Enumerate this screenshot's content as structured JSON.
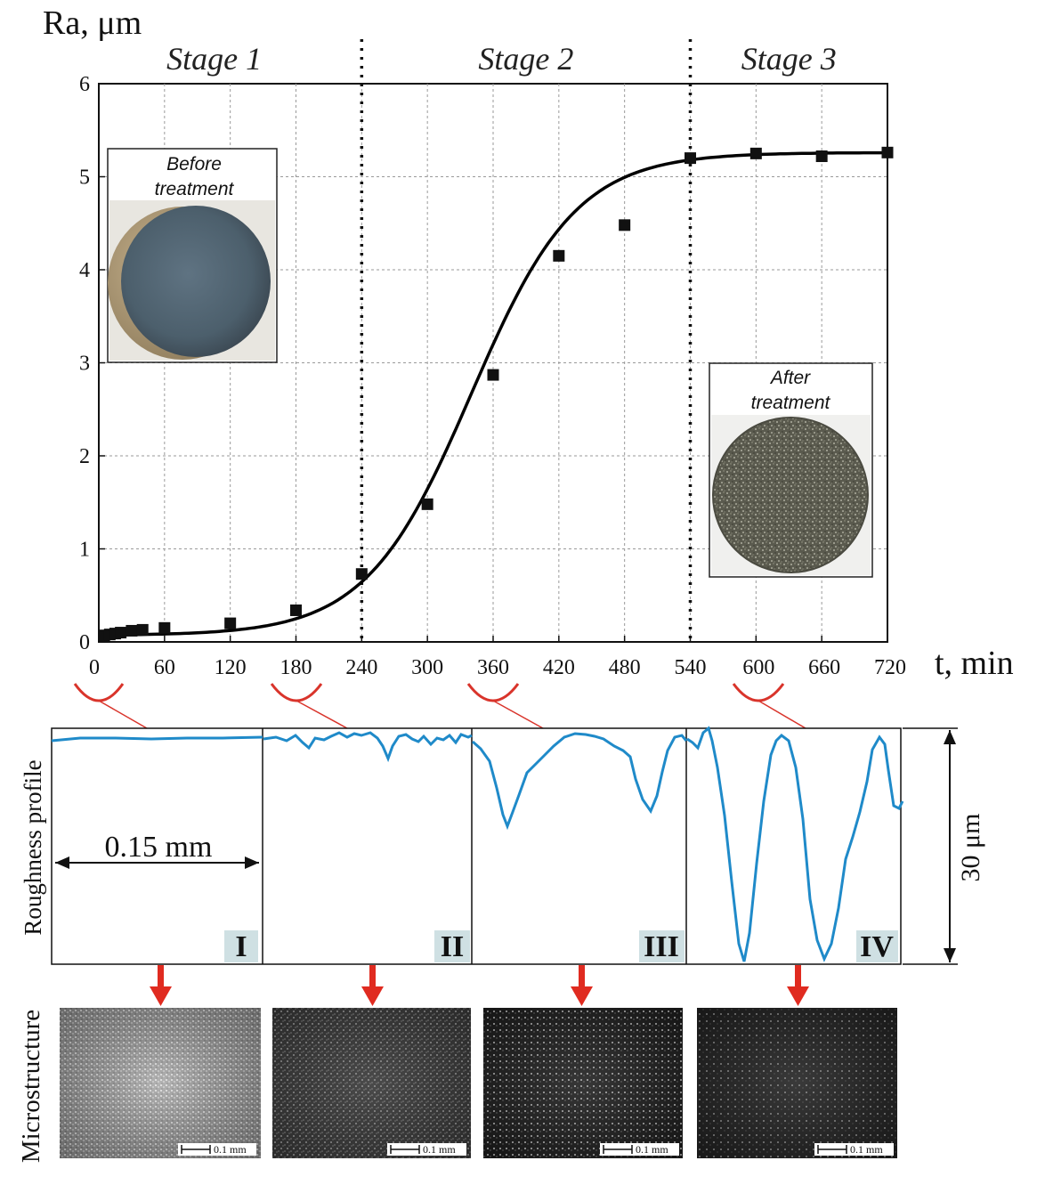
{
  "chart_data": {
    "type": "scatter",
    "ylabel": "Ra, μm",
    "xlabel": "t, min",
    "xlim": [
      0,
      720
    ],
    "ylim": [
      0,
      6
    ],
    "x_ticks": [
      "0",
      "60",
      "120",
      "180",
      "240",
      "300",
      "360",
      "420",
      "480",
      "540",
      "600",
      "660",
      "720"
    ],
    "y_ticks": [
      "0",
      "1",
      "2",
      "3",
      "4",
      "5",
      "6"
    ],
    "grid": true,
    "stages": [
      {
        "label": "Stage 1",
        "from": 0,
        "to": 240
      },
      {
        "label": "Stage 2",
        "from": 240,
        "to": 540
      },
      {
        "label": "Stage 3",
        "from": 540,
        "to": 720
      }
    ],
    "stage_boundaries": [
      240,
      540
    ],
    "series": [
      {
        "points": [
          {
            "x": 5,
            "y": 0.07
          },
          {
            "x": 10,
            "y": 0.08
          },
          {
            "x": 15,
            "y": 0.09
          },
          {
            "x": 20,
            "y": 0.1
          },
          {
            "x": 30,
            "y": 0.12
          },
          {
            "x": 40,
            "y": 0.13
          },
          {
            "x": 60,
            "y": 0.15
          },
          {
            "x": 120,
            "y": 0.2
          },
          {
            "x": 180,
            "y": 0.34
          },
          {
            "x": 240,
            "y": 0.73
          },
          {
            "x": 300,
            "y": 1.48
          },
          {
            "x": 360,
            "y": 2.87
          },
          {
            "x": 420,
            "y": 4.15
          },
          {
            "x": 480,
            "y": 4.48
          },
          {
            "x": 540,
            "y": 5.2
          },
          {
            "x": 600,
            "y": 5.25
          },
          {
            "x": 660,
            "y": 5.22
          },
          {
            "x": 720,
            "y": 5.26
          }
        ]
      }
    ],
    "fit_curve": {
      "form": "sigmoid",
      "base": 0.07,
      "plateau": 5.26,
      "midpoint_min": 340,
      "scale_min": 48
    },
    "insets": [
      {
        "text_line1": "Before",
        "text_line2": "treatment"
      },
      {
        "text_line1": "After",
        "text_line2": "treatment"
      }
    ],
    "profile_panels": [
      "I",
      "II",
      "III",
      "IV"
    ],
    "profile_axis_label": "Roughness profile",
    "profile_scale_label": "0.15 mm",
    "profile_height_label": "30 μm",
    "microstructure_label": "Microstructure",
    "micro_scale_label": "0.1 mm",
    "colors": {
      "profile_line": "#1f8ac9",
      "arrow": "#e02b20",
      "bracket": "#d9342b",
      "label_bg": "#cfe0e3"
    }
  }
}
